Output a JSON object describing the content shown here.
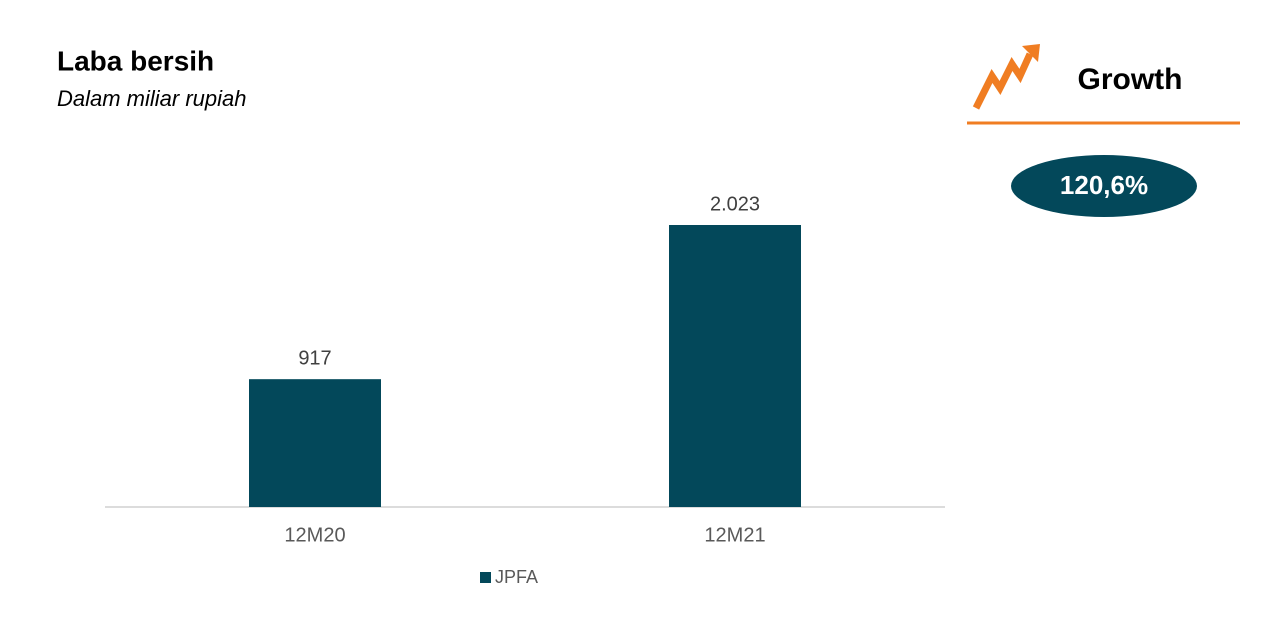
{
  "chart_data": {
    "type": "bar",
    "title": "Laba bersih",
    "subtitle": "Dalam miliar rupiah",
    "categories": [
      "12M20",
      "12M21"
    ],
    "series": [
      {
        "name": "JPFA",
        "color": "#03485a",
        "values": [
          917,
          2023
        ],
        "value_labels": [
          "917",
          "2.023"
        ]
      }
    ],
    "legend": "bottom",
    "growth_label": "Growth",
    "growth_value": "120,6%"
  }
}
